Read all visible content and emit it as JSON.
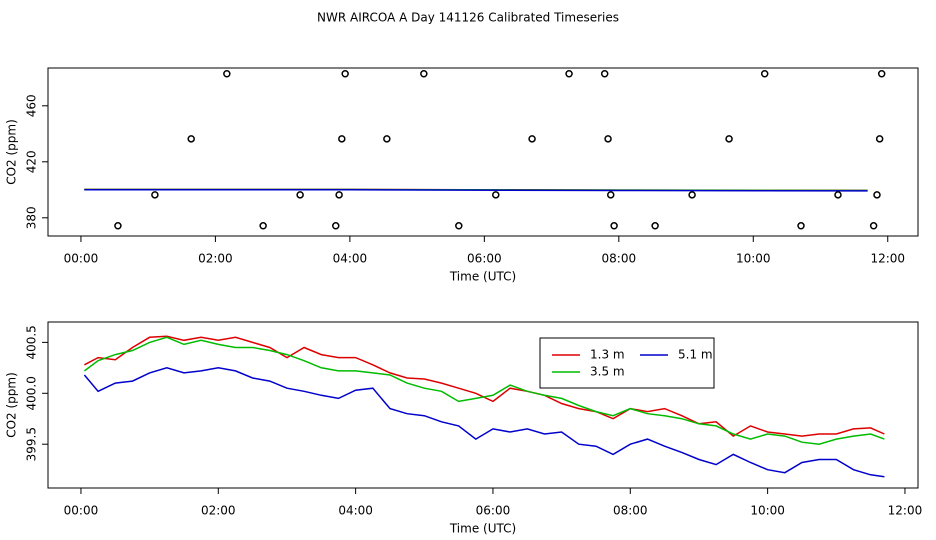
{
  "title": "NWR AIRCOA A  Day 141126  Calibrated Timeseries",
  "chart_data": [
    {
      "type": "scatter",
      "y_label": "CO2 (ppm)",
      "x_label": "Time (UTC)",
      "x": [
        0.55,
        2.71,
        3.79,
        5.62,
        7.93,
        8.54,
        10.71,
        11.79,
        1.1,
        3.26,
        3.84,
        6.17,
        7.88,
        9.09,
        11.26,
        11.84,
        1.64,
        3.88,
        4.55,
        6.71,
        7.84,
        9.64,
        11.88,
        2.17,
        3.93,
        5.1,
        7.26,
        7.79,
        10.17,
        11.91
      ],
      "values": [
        374.3,
        374.3,
        374.3,
        374.3,
        374.3,
        374.3,
        374.3,
        374.3,
        396.4,
        396.4,
        396.4,
        396.4,
        396.4,
        396.4,
        396.4,
        396.4,
        436.4,
        436.4,
        436.4,
        436.4,
        436.4,
        436.4,
        436.4,
        482.9,
        482.9,
        482.9,
        482.9,
        482.9,
        482.9,
        482.9
      ],
      "color": "#000000",
      "series": [
        {
          "color": "#dd0000",
          "x": [
            0.05,
            4,
            8,
            11.7
          ],
          "values": [
            400.3,
            400.3,
            399.8,
            399.6
          ]
        },
        {
          "color": "#00bb00",
          "x": [
            0.05,
            4,
            8,
            11.7
          ],
          "values": [
            400.2,
            400.2,
            399.8,
            399.5
          ]
        },
        {
          "color": "#0000cc",
          "x": [
            0.05,
            4,
            8,
            11.7
          ],
          "values": [
            400.1,
            400.0,
            399.5,
            399.2
          ]
        }
      ],
      "xlim": [
        -0.49,
        12.45
      ],
      "ylim": [
        367,
        487
      ],
      "xticks": [
        {
          "value": 0,
          "label": "00:00"
        },
        {
          "value": 2,
          "label": "02:00"
        },
        {
          "value": 4,
          "label": "04:00"
        },
        {
          "value": 6,
          "label": "06:00"
        },
        {
          "value": 8,
          "label": "08:00"
        },
        {
          "value": 10,
          "label": "10:00"
        },
        {
          "value": 12,
          "label": "12:00"
        }
      ],
      "yticks": [
        380,
        420,
        460
      ]
    },
    {
      "type": "line",
      "y_label": "CO2 (ppm)",
      "x_label": "Time (UTC)",
      "x": [
        0.05,
        0.25,
        0.5,
        0.75,
        1.0,
        1.25,
        1.5,
        1.75,
        2.0,
        2.25,
        2.5,
        2.75,
        3.0,
        3.25,
        3.5,
        3.75,
        4.0,
        4.25,
        4.5,
        4.75,
        5.0,
        5.25,
        5.5,
        5.75,
        6.0,
        6.25,
        6.5,
        6.75,
        7.0,
        7.25,
        7.5,
        7.75,
        8.0,
        8.25,
        8.5,
        8.75,
        9.0,
        9.25,
        9.5,
        9.75,
        10.0,
        10.25,
        10.5,
        10.75,
        11.0,
        11.25,
        11.5,
        11.7
      ],
      "series": [
        {
          "name": "1.3 m",
          "color": "#dd0000",
          "values": [
            400.28,
            400.35,
            400.33,
            400.45,
            400.55,
            400.56,
            400.52,
            400.55,
            400.52,
            400.55,
            400.5,
            400.45,
            400.35,
            400.45,
            400.38,
            400.35,
            400.35,
            400.28,
            400.2,
            400.15,
            400.14,
            400.1,
            400.05,
            400.0,
            399.92,
            400.05,
            400.02,
            399.98,
            399.9,
            399.85,
            399.82,
            399.75,
            399.85,
            399.82,
            399.85,
            399.78,
            399.7,
            399.72,
            399.58,
            399.68,
            399.62,
            399.6,
            399.58,
            399.6,
            399.6,
            399.65,
            399.66,
            399.6
          ]
        },
        {
          "name": "3.5 m",
          "color": "#00bb00",
          "values": [
            400.22,
            400.32,
            400.38,
            400.42,
            400.5,
            400.55,
            400.48,
            400.52,
            400.48,
            400.45,
            400.45,
            400.42,
            400.38,
            400.32,
            400.25,
            400.22,
            400.22,
            400.2,
            400.18,
            400.1,
            400.05,
            400.02,
            399.92,
            399.95,
            399.98,
            400.08,
            400.02,
            399.98,
            399.95,
            399.88,
            399.82,
            399.78,
            399.85,
            399.8,
            399.78,
            399.75,
            399.7,
            399.68,
            399.6,
            399.55,
            399.6,
            399.58,
            399.52,
            399.5,
            399.55,
            399.58,
            399.6,
            399.55
          ]
        },
        {
          "name": "5.1 m",
          "color": "#0000cc",
          "values": [
            400.18,
            400.02,
            400.1,
            400.12,
            400.2,
            400.25,
            400.2,
            400.22,
            400.25,
            400.22,
            400.15,
            400.12,
            400.05,
            400.02,
            399.98,
            399.95,
            400.03,
            400.05,
            399.85,
            399.8,
            399.78,
            399.72,
            399.68,
            399.55,
            399.65,
            399.62,
            399.65,
            399.6,
            399.62,
            399.5,
            399.48,
            399.4,
            399.5,
            399.55,
            399.48,
            399.42,
            399.35,
            399.3,
            399.4,
            399.32,
            399.25,
            399.22,
            399.32,
            399.35,
            399.35,
            399.25,
            399.2,
            399.18
          ]
        }
      ],
      "xlim": [
        -0.48,
        12.19
      ],
      "ylim": [
        399.07,
        400.7
      ],
      "xticks": [
        {
          "value": 0,
          "label": "00:00"
        },
        {
          "value": 2,
          "label": "02:00"
        },
        {
          "value": 4,
          "label": "04:00"
        },
        {
          "value": 6,
          "label": "06:00"
        },
        {
          "value": 8,
          "label": "08:00"
        },
        {
          "value": 10,
          "label": "10:00"
        },
        {
          "value": 12,
          "label": "12:00"
        }
      ],
      "yticks": [
        399.5,
        {
          "value": 400,
          "label": "400.0"
        },
        400.5
      ],
      "legend": "top-right"
    }
  ]
}
